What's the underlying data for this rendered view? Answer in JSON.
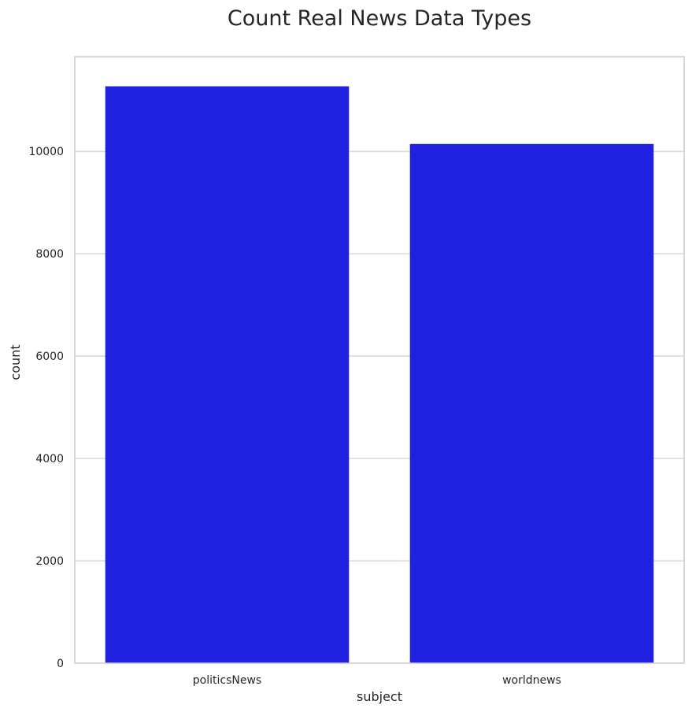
{
  "chart_data": {
    "type": "bar",
    "title": "Count Real News Data Types",
    "xlabel": "subject",
    "ylabel": "count",
    "categories": [
      "politicsNews",
      "worldnews"
    ],
    "values": [
      11272,
      10145
    ],
    "ylim": [
      0,
      11850
    ],
    "yticks": [
      0,
      2000,
      4000,
      6000,
      8000,
      10000
    ],
    "bar_color": "#2020e0",
    "grid": true,
    "grid_axis": "y",
    "legend": "none"
  }
}
